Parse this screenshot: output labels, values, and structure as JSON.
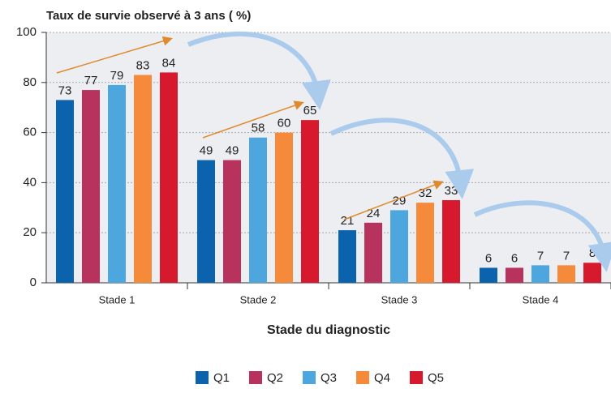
{
  "chart_data": {
    "type": "bar",
    "title": "Taux de survie observé à 3 ans ( %)",
    "x_label": "Stade du diagnostic",
    "categories": [
      "Stade 1",
      "Stade 2",
      "Stade 3",
      "Stade 4"
    ],
    "series": [
      {
        "name": "Q1",
        "color": "#0b62ad",
        "values": [
          73,
          49,
          21,
          6
        ]
      },
      {
        "name": "Q2",
        "color": "#b7335e",
        "values": [
          77,
          49,
          24,
          6
        ]
      },
      {
        "name": "Q3",
        "color": "#4ea6df",
        "values": [
          79,
          58,
          29,
          7
        ]
      },
      {
        "name": "Q4",
        "color": "#f48a3a",
        "values": [
          83,
          60,
          32,
          7
        ]
      },
      {
        "name": "Q5",
        "color": "#d6192c",
        "values": [
          84,
          65,
          33,
          8
        ]
      }
    ],
    "ylim": [
      0,
      100
    ],
    "yticks": [
      0,
      20,
      40,
      60,
      80,
      100
    ],
    "grid": true
  }
}
